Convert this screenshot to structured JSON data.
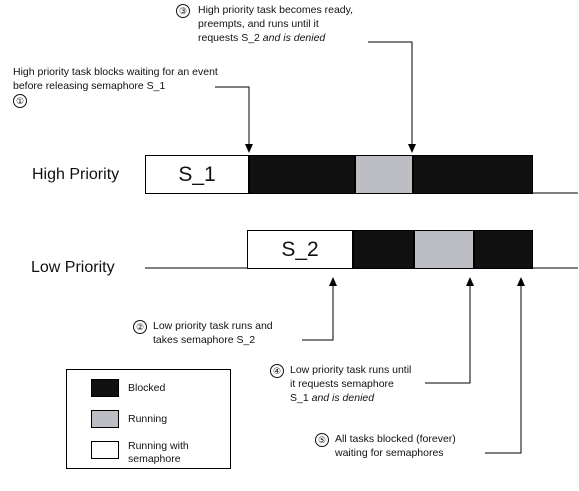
{
  "lanes": {
    "high": {
      "label": "High Priority",
      "semaphore": "S_1"
    },
    "low": {
      "label": "Low Priority",
      "semaphore": "S_2"
    }
  },
  "annotations": {
    "a1": {
      "number": "①",
      "line1": "High priority task blocks waiting for an event",
      "line2": "before releasing semaphore S_1"
    },
    "a2": {
      "number": "②",
      "line1": "Low priority task runs and",
      "line2": "takes semaphore S_2"
    },
    "a3": {
      "number": "③",
      "line1": "High priority task becomes ready,",
      "line2": "preempts, and runs until it",
      "line3_plain": "requests S_2 ",
      "line3_italic": "and is denied"
    },
    "a4": {
      "number": "④",
      "line1": "Low priority task runs until",
      "line2": "it requests semaphore",
      "line3_plain": "S_1 ",
      "line3_italic": "and is denied"
    },
    "a5": {
      "number": "⑤",
      "line1": "All tasks blocked (forever)",
      "line2": "waiting for semaphores"
    }
  },
  "legend": {
    "blocked": "Blocked",
    "running": "Running",
    "running_sem_line1": "Running with",
    "running_sem_line2": "semaphore"
  },
  "colors": {
    "blocked": "#111111",
    "running": "#bdbdc4",
    "running_with_semaphore": "#ffffff"
  }
}
